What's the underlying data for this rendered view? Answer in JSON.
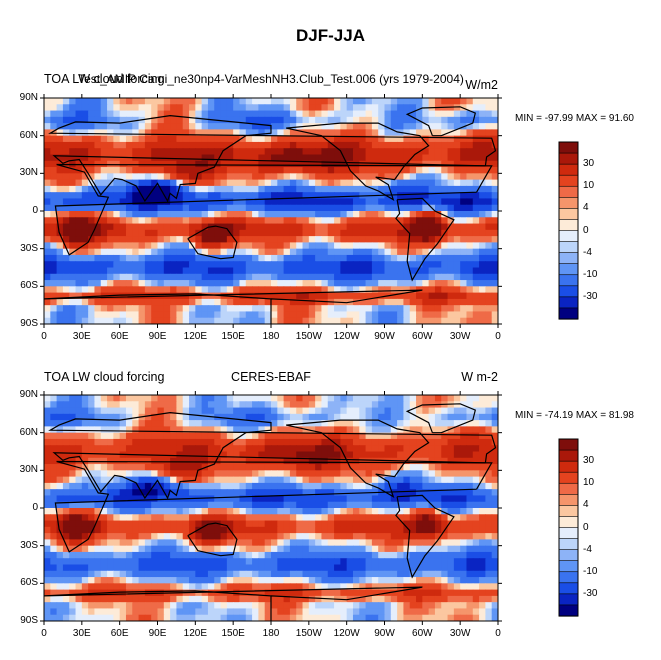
{
  "figure_title": "DJF-JJA",
  "colors": {
    "scale": [
      "#000080",
      "#0a24c2",
      "#1a4ee6",
      "#3a73ef",
      "#5f95f5",
      "#8db3f7",
      "#bcd5fa",
      "#e5eefc",
      "#fdebd8",
      "#fbc7a0",
      "#f5956b",
      "#ef6a47",
      "#e4431f",
      "#cf2a0e",
      "#aa180a",
      "#7e0e0b"
    ],
    "land_outline": "#000000"
  },
  "panels": [
    {
      "left_title": "TOA LW cloud forcing",
      "center_title": "Test_AMIP Cami_ne30np4-VarMeshNH3.Club_Test.006 (yrs 1979-2004)",
      "units": "W/m2",
      "min_max": "MIN = -97.99 MAX =  91.60"
    },
    {
      "left_title": "TOA LW cloud forcing",
      "center_title": "CERES-EBAF",
      "units": "W m-2",
      "min_max": "MIN = -74.19 MAX =  81.98"
    }
  ],
  "lon_ticks": [
    "0",
    "30E",
    "60E",
    "90E",
    "120E",
    "150E",
    "180",
    "150W",
    "120W",
    "90W",
    "60W",
    "30W",
    "0"
  ],
  "lat_ticks": [
    "90N",
    "60N",
    "30N",
    "0",
    "30S",
    "60S",
    "90S"
  ],
  "colorbar_labels": [
    "30",
    "10",
    "4",
    "0",
    "-4",
    "-10",
    "-30"
  ],
  "bands": [
    {
      "lat": "60N-90N",
      "sign": "mixed"
    },
    {
      "lat": "30N-60N",
      "sign": "positive"
    },
    {
      "lat": "0-30N",
      "sign": "negative"
    },
    {
      "lat": "0-30S",
      "sign": "positive"
    },
    {
      "lat": "30S-60S",
      "sign": "negative"
    },
    {
      "lat": "60S-90S",
      "sign": "positive"
    }
  ]
}
